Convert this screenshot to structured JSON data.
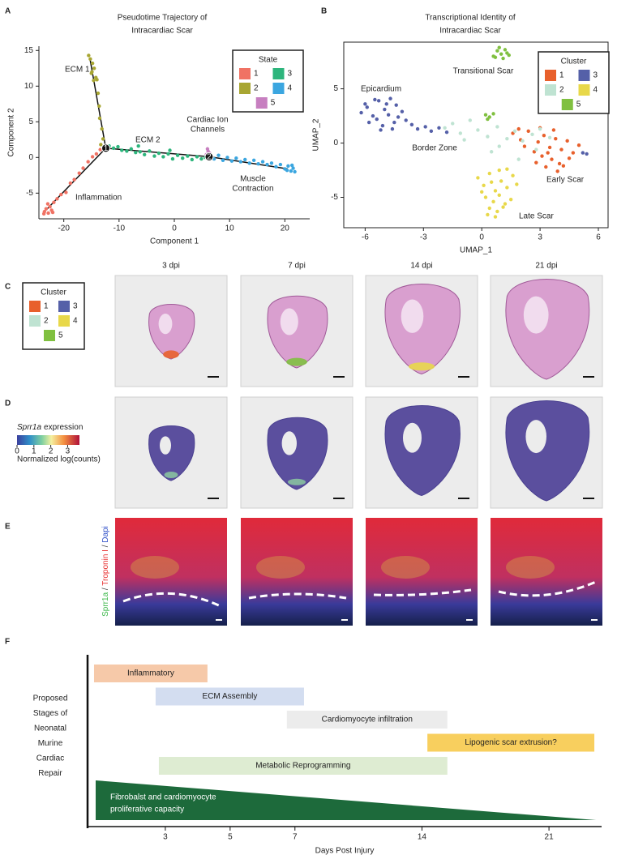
{
  "panel_labels": [
    "A",
    "B",
    "C",
    "D",
    "E",
    "F"
  ],
  "chart_data": [
    {
      "type": "scatter",
      "title": [
        "Pseudotime Trajectory of",
        "Intracardiac Scar"
      ],
      "xlabel": "Component 1",
      "ylabel": "Component 2",
      "frame": false,
      "xlim": [
        -24.5,
        24.5
      ],
      "ylim": [
        -8.6,
        15.6
      ],
      "xticks": [
        -20,
        -10,
        0,
        10,
        20
      ],
      "yticks": [
        -5,
        0,
        5,
        10,
        15
      ],
      "legend_title": "State",
      "series": [
        {
          "name": "1",
          "color": "#f07264",
          "x": [
            -23.5,
            -23.2,
            -22.8,
            -22.5,
            -22.9,
            -23.6,
            -22.2,
            -21.8,
            -21.2,
            -20.5,
            -19.6,
            -18.8,
            -18.1,
            -17.2,
            -16.5,
            -15.6,
            -14.8,
            -14.1,
            -13.4,
            -22.0
          ],
          "y": [
            -7.6,
            -7.2,
            -7.8,
            -6.9,
            -6.5,
            -7.9,
            -7.4,
            -6.3,
            -5.8,
            -5.2,
            -4.9,
            -3.6,
            -3.1,
            -2.2,
            -1.5,
            -0.6,
            0.1,
            0.5,
            1.1,
            -7.7
          ]
        },
        {
          "name": "2",
          "color": "#a8a632",
          "x": [
            -15.5,
            -15.2,
            -14.8,
            -14.5,
            -15.0,
            -14.2,
            -14.6,
            -14.0,
            -13.8,
            -13.6,
            -13.5,
            -13.1,
            -12.9,
            -13.3,
            -14.9
          ],
          "y": [
            14.3,
            13.8,
            13.2,
            12.5,
            11.8,
            11.2,
            10.8,
            10.9,
            9.0,
            7.2,
            5.5,
            4.0,
            2.6,
            1.8,
            12.0
          ]
        },
        {
          "name": "3",
          "color": "#2db57c",
          "x": [
            -11.8,
            -11,
            -10.2,
            -9.5,
            -8.6,
            -7.8,
            -7,
            -6.2,
            -5.4,
            -4.5,
            -3.6,
            -2.8,
            -2,
            -1.1,
            -0.3,
            0.6,
            1.5,
            2.4,
            3.2,
            4.1,
            4.9,
            5.6,
            -6.5,
            -0.8
          ],
          "y": [
            1.6,
            1.3,
            1.5,
            1.0,
            0.9,
            1.2,
            0.7,
            0.8,
            0.4,
            0.9,
            0.2,
            0.6,
            0.1,
            0.5,
            -0.2,
            0.3,
            -0.1,
            0.2,
            -0.3,
            0.1,
            -0.2,
            0.0,
            1.6,
            1.0
          ]
        },
        {
          "name": "4",
          "color": "#3ba6e0",
          "x": [
            6.5,
            7.2,
            8,
            8.8,
            9.6,
            10.4,
            11.2,
            12,
            12.8,
            13.6,
            14.4,
            15.2,
            16,
            16.8,
            17.6,
            18.4,
            19.2,
            20,
            20.6,
            21.1,
            21.5,
            21.8,
            21.3,
            20.4
          ],
          "y": [
            0.1,
            -0.2,
            0.3,
            -0.4,
            0.0,
            -0.5,
            -0.1,
            -0.6,
            -0.3,
            -0.8,
            -0.4,
            -0.9,
            -0.6,
            -1.0,
            -0.8,
            -1.3,
            -1.0,
            -1.6,
            -1.2,
            -1.9,
            -1.5,
            -2.0,
            -1.1,
            -1.8
          ]
        },
        {
          "name": "5",
          "color": "#c77fc0",
          "x": [
            5.8,
            6.1,
            6.4,
            6.0,
            6.3
          ],
          "y": [
            0.4,
            0.9,
            0.6,
            1.2,
            0.2
          ]
        }
      ],
      "trajectory": [
        [
          -15.3,
          14.0,
          -12.4,
          1.3
        ],
        [
          -12.4,
          1.3,
          -23.0,
          -7.2
        ],
        [
          -12.4,
          1.3,
          6.3,
          0.1
        ],
        [
          6.3,
          0.1,
          20.5,
          -1.6
        ]
      ],
      "branch_points": [
        {
          "label": "1",
          "x": -12.4,
          "y": 1.3
        },
        {
          "label": "2",
          "x": 6.3,
          "y": 0.1
        }
      ],
      "annotations": [
        [
          "ECM 1"
        ],
        [
          "ECM 2"
        ],
        [
          "Cardiac Ion",
          "Channels"
        ],
        [
          "Muscle",
          "Contraction"
        ],
        [
          "Inflammation"
        ]
      ]
    },
    {
      "type": "scatter",
      "title": [
        "Transcriptional Identity of",
        "Intracardiac Scar"
      ],
      "xlabel": "UMAP_1",
      "ylabel": "UMAP_2",
      "frame": true,
      "xlim": [
        -7.1,
        6.5
      ],
      "ylim": [
        -7.8,
        9.3
      ],
      "xticks": [
        -6,
        -3,
        0,
        3,
        6
      ],
      "yticks": [
        -5,
        0,
        5
      ],
      "legend_title": "Cluster",
      "series": [
        {
          "name": "1",
          "color": "#e8602c",
          "x": [
            1.6,
            2.0,
            2.4,
            2.9,
            3.2,
            3.5,
            3.8,
            4.1,
            4.4,
            4.7,
            5.0,
            3.1,
            3.6,
            4.0,
            2.7,
            3.3,
            3.9,
            4.5,
            2.2,
            2.8,
            3.4,
            4.2,
            1.9,
            3.0,
            3.7
          ],
          "y": [
            0.9,
            0.3,
            1.1,
            0.1,
            0.7,
            -0.4,
            0.4,
            -0.6,
            0.2,
            -0.9,
            -0.2,
            -1.2,
            -1.5,
            -1.9,
            -0.8,
            -2.2,
            -2.6,
            -1.4,
            -0.3,
            -1.8,
            -0.9,
            -2.1,
            1.3,
            1.4,
            1.2
          ]
        },
        {
          "name": "2",
          "color": "#bfe3d2",
          "x": [
            -1.9,
            -1.5,
            -1.1,
            -0.6,
            -0.2,
            0.3,
            0.8,
            1.3,
            1.7,
            2.1,
            2.6,
            3.0,
            3.5,
            -0.9,
            0.5,
            1.9,
            2.8,
            0.9
          ],
          "y": [
            1.4,
            1.8,
            0.9,
            2.1,
            1.2,
            0.6,
            1.5,
            0.4,
            1.1,
            0.2,
            0.8,
            1.3,
            0.5,
            0.3,
            -0.8,
            -1.5,
            -0.6,
            -0.3
          ]
        },
        {
          "name": "3",
          "color": "#5560a8",
          "x": [
            -6.2,
            -5.9,
            -5.6,
            -5.3,
            -5.0,
            -4.7,
            -4.4,
            -4.1,
            -5.8,
            -5.4,
            -5.1,
            -4.8,
            -4.5,
            -6.0,
            -5.5,
            -4.9,
            -4.3,
            -3.9,
            -3.6,
            -3.3,
            -2.9,
            -2.6,
            -2.2,
            -1.8,
            -5.2,
            -4.6,
            5.2,
            5.4
          ],
          "y": [
            2.8,
            3.3,
            2.5,
            3.9,
            3.1,
            4.1,
            3.5,
            2.9,
            1.9,
            2.2,
            1.6,
            2.6,
            1.9,
            3.6,
            4.0,
            3.6,
            2.4,
            2.1,
            1.7,
            1.3,
            1.5,
            1.1,
            1.4,
            1.0,
            1.2,
            1.3,
            -0.9,
            -1.0
          ]
        },
        {
          "name": "4",
          "color": "#e8d84a",
          "x": [
            -0.2,
            0.1,
            0.4,
            0.7,
            1.0,
            1.3,
            1.6,
            0.2,
            0.6,
            0.9,
            1.2,
            1.5,
            0.0,
            0.4,
            0.8,
            1.1,
            0.5,
            0.9,
            1.3,
            1.8,
            0.3,
            0.7
          ],
          "y": [
            -3.2,
            -3.9,
            -2.8,
            -4.4,
            -3.5,
            -4.1,
            -3.0,
            -5.0,
            -5.4,
            -4.8,
            -5.6,
            -5.2,
            -4.5,
            -6.0,
            -6.3,
            -5.9,
            -3.6,
            -2.5,
            -2.4,
            -3.8,
            -6.6,
            -6.8
          ]
        },
        {
          "name": "5",
          "color": "#80c040",
          "x": [
            0.6,
            0.8,
            1.0,
            1.2,
            1.4,
            0.9,
            1.1,
            1.3,
            0.7,
            0.2,
            0.4,
            0.6,
            0.3
          ],
          "y": [
            8.0,
            8.5,
            8.2,
            8.6,
            8.1,
            8.8,
            7.8,
            8.3,
            7.9,
            2.6,
            2.4,
            2.7,
            2.2
          ]
        }
      ],
      "annotations": [
        [
          "Epicardium"
        ],
        [
          "Transitional Scar"
        ],
        [
          "Border Zone"
        ],
        [
          "Early Scar"
        ],
        [
          "Late Scar"
        ]
      ]
    },
    {
      "type": "gantt",
      "ylabel": [
        "Proposed",
        "Stages of",
        "Neonatal",
        "Murine",
        "Cardiac",
        "Repair"
      ],
      "xlabel": "Days Post Injury",
      "xlim": [
        0.6,
        23.9
      ],
      "xticks": [
        3,
        5,
        7,
        14,
        21
      ],
      "x_scale": {
        "break": 7,
        "factor_after": 0.56
      },
      "tasks": [
        {
          "name": "Inflammatory",
          "start": 0.8,
          "end": 4.3,
          "color": "#f6c9a9"
        },
        {
          "name": "ECM Assembly",
          "start": 2.7,
          "end": 7.5,
          "color": "#d3ddf0"
        },
        {
          "name": "Cardiomyocyte infiltration",
          "start": 6.75,
          "end": 15.4,
          "color": "#ececec"
        },
        {
          "name": "Lipogenic scar extrusion?",
          "start": 14.3,
          "end": 23.5,
          "color": "#f8cf5e"
        },
        {
          "name": "Metabolic Reprogramming",
          "start": 2.8,
          "end": 15.4,
          "color": "#deecd2"
        }
      ],
      "wedge": {
        "label": [
          "Fibrobalst and cardiomyocyte",
          "proliferative capacity"
        ],
        "start": 0.85,
        "end": 23.6,
        "color": "#1d6a3b"
      }
    }
  ],
  "tissue": {
    "columns": [
      "3 dpi",
      "7 dpi",
      "14 dpi",
      "21 dpi"
    ],
    "legend": {
      "title": "Cluster",
      "items": [
        {
          "name": "1",
          "color": "#e8602c"
        },
        {
          "name": "2",
          "color": "#bfe3d2"
        },
        {
          "name": "3",
          "color": "#5560a8"
        },
        {
          "name": "4",
          "color": "#e8d84a"
        },
        {
          "name": "5",
          "color": "#80c040"
        }
      ]
    },
    "colorbar": {
      "gene": "Sprr1a",
      "title_rest": "expression",
      "subtitle": "Normalized log(counts)",
      "lim": [
        0,
        3.7
      ],
      "ticks": [
        0,
        1,
        2,
        3
      ]
    },
    "stain_label": [
      {
        "text": "Sprr1a",
        "color": "#3cb84a"
      },
      {
        "text": " / ",
        "color": "#444444"
      },
      {
        "text": "Troponin I",
        "color": "#e83030"
      },
      {
        "text": " / ",
        "color": "#444444"
      },
      {
        "text": "Dapi",
        "color": "#3050c8"
      }
    ]
  }
}
